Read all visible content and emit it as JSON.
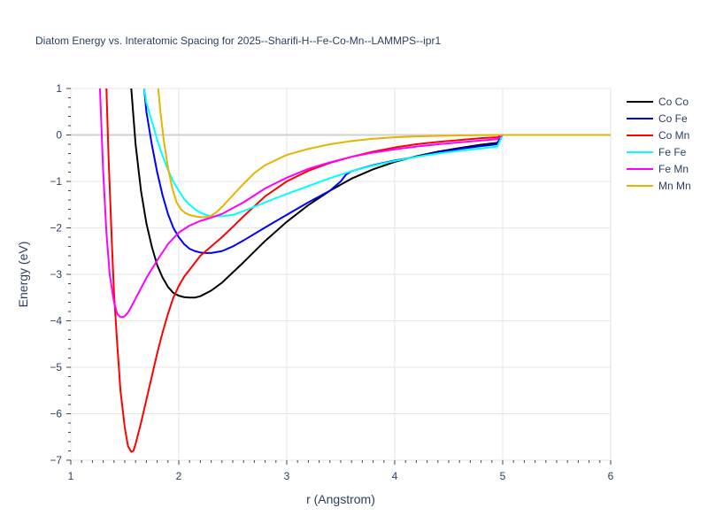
{
  "chart_data": {
    "type": "line",
    "title": "Diatom Energy vs. Interatomic Spacing for 2025--Sharifi-H--Fe-Co-Mn--LAMMPS--ipr1",
    "xlabel": "r (Angstrom)",
    "ylabel": "Energy (eV)",
    "xlim": [
      1,
      6
    ],
    "ylim": [
      -7,
      1
    ],
    "xticks": [
      1,
      2,
      3,
      4,
      5,
      6
    ],
    "yticks": [
      1,
      0,
      -1,
      -2,
      -3,
      -4,
      -5,
      -6,
      -7
    ],
    "xtick_labels": [
      "1",
      "2",
      "3",
      "4",
      "5",
      "6"
    ],
    "ytick_labels": [
      "1",
      "0",
      "−1",
      "−2",
      "−3",
      "−4",
      "−5",
      "−6",
      "−7"
    ],
    "grid": true,
    "legend_position": "top-right",
    "series": [
      {
        "name": "Co Co",
        "color": "#000000",
        "x": [
          1.56,
          1.58,
          1.6,
          1.65,
          1.7,
          1.75,
          1.8,
          1.85,
          1.9,
          1.95,
          2.0,
          2.05,
          2.1,
          2.15,
          2.2,
          2.3,
          2.4,
          2.5,
          2.6,
          2.8,
          3.0,
          3.2,
          3.4,
          3.6,
          3.8,
          4.0,
          4.2,
          4.4,
          4.6,
          4.8,
          4.95,
          5.0,
          5.5,
          6.0
        ],
        "y": [
          1.0,
          0.4,
          -0.2,
          -1.2,
          -1.9,
          -2.4,
          -2.8,
          -3.07,
          -3.27,
          -3.4,
          -3.46,
          -3.49,
          -3.5,
          -3.5,
          -3.47,
          -3.35,
          -3.18,
          -2.96,
          -2.74,
          -2.28,
          -1.87,
          -1.51,
          -1.2,
          -0.94,
          -0.74,
          -0.58,
          -0.46,
          -0.36,
          -0.28,
          -0.21,
          -0.17,
          0.0,
          0.0,
          0.0
        ]
      },
      {
        "name": "Co Fe",
        "color": "#0000ff",
        "x": [
          1.68,
          1.7,
          1.75,
          1.8,
          1.85,
          1.9,
          1.95,
          2.0,
          2.05,
          2.1,
          2.15,
          2.2,
          2.25,
          2.3,
          2.4,
          2.5,
          2.6,
          2.8,
          3.0,
          3.2,
          3.4,
          3.5,
          3.55,
          3.6,
          3.8,
          4.0,
          4.2,
          4.4,
          4.6,
          4.8,
          4.95,
          5.0,
          5.5,
          6.0
        ],
        "y": [
          1.0,
          0.5,
          -0.2,
          -0.8,
          -1.3,
          -1.7,
          -2.0,
          -2.2,
          -2.35,
          -2.45,
          -2.5,
          -2.53,
          -2.54,
          -2.54,
          -2.5,
          -2.4,
          -2.27,
          -1.99,
          -1.72,
          -1.45,
          -1.2,
          -1.0,
          -0.85,
          -0.78,
          -0.65,
          -0.55,
          -0.47,
          -0.38,
          -0.3,
          -0.24,
          -0.2,
          0.0,
          0.0,
          0.0
        ]
      },
      {
        "name": "Co Mn",
        "color": "#ff0000",
        "x": [
          1.33,
          1.35,
          1.38,
          1.4,
          1.43,
          1.46,
          1.5,
          1.53,
          1.56,
          1.58,
          1.6,
          1.65,
          1.7,
          1.75,
          1.8,
          1.85,
          1.9,
          1.95,
          2.0,
          2.05,
          2.1,
          2.2,
          2.3,
          2.4,
          2.5,
          2.6,
          2.8,
          3.0,
          3.2,
          3.4,
          3.6,
          3.8,
          4.0,
          4.2,
          4.4,
          4.6,
          4.8,
          4.95,
          5.0,
          5.5,
          6.0
        ],
        "y": [
          1.0,
          -0.5,
          -2.3,
          -3.4,
          -4.5,
          -5.5,
          -6.3,
          -6.7,
          -6.82,
          -6.8,
          -6.65,
          -6.2,
          -5.7,
          -5.2,
          -4.7,
          -4.25,
          -3.85,
          -3.5,
          -3.25,
          -3.05,
          -2.9,
          -2.6,
          -2.4,
          -2.2,
          -1.98,
          -1.75,
          -1.32,
          -1.0,
          -0.77,
          -0.6,
          -0.47,
          -0.36,
          -0.27,
          -0.2,
          -0.15,
          -0.11,
          -0.07,
          -0.05,
          0.0,
          0.0,
          0.0
        ]
      },
      {
        "name": "Fe Fe",
        "color": "#00ffff",
        "x": [
          1.68,
          1.7,
          1.75,
          1.8,
          1.85,
          1.9,
          1.95,
          2.0,
          2.05,
          2.1,
          2.15,
          2.2,
          2.25,
          2.3,
          2.4,
          2.5,
          2.6,
          2.8,
          3.0,
          3.2,
          3.4,
          3.6,
          3.8,
          4.0,
          4.2,
          4.4,
          4.6,
          4.8,
          4.95,
          5.0,
          5.5,
          6.0
        ],
        "y": [
          1.0,
          0.7,
          0.3,
          -0.1,
          -0.45,
          -0.75,
          -1.0,
          -1.2,
          -1.38,
          -1.5,
          -1.6,
          -1.67,
          -1.72,
          -1.75,
          -1.75,
          -1.72,
          -1.64,
          -1.45,
          -1.27,
          -1.1,
          -0.93,
          -0.78,
          -0.66,
          -0.56,
          -0.47,
          -0.4,
          -0.34,
          -0.29,
          -0.25,
          0.0,
          0.0,
          0.0
        ]
      },
      {
        "name": "Fe Mn",
        "color": "#ff00ff",
        "x": [
          1.27,
          1.3,
          1.33,
          1.36,
          1.4,
          1.43,
          1.46,
          1.48,
          1.5,
          1.53,
          1.56,
          1.6,
          1.65,
          1.7,
          1.8,
          1.9,
          2.0,
          2.1,
          2.2,
          2.3,
          2.4,
          2.6,
          2.8,
          3.0,
          3.2,
          3.4,
          3.6,
          3.8,
          4.0,
          4.2,
          4.4,
          4.6,
          4.8,
          4.95,
          5.0,
          5.5,
          6.0
        ],
        "y": [
          1.0,
          -0.8,
          -2.1,
          -3.0,
          -3.6,
          -3.85,
          -3.92,
          -3.92,
          -3.9,
          -3.82,
          -3.7,
          -3.52,
          -3.3,
          -3.08,
          -2.7,
          -2.35,
          -2.1,
          -1.95,
          -1.85,
          -1.78,
          -1.7,
          -1.45,
          -1.15,
          -0.92,
          -0.73,
          -0.59,
          -0.47,
          -0.38,
          -0.31,
          -0.25,
          -0.2,
          -0.16,
          -0.12,
          -0.09,
          0.0,
          0.0,
          0.0
        ]
      },
      {
        "name": "Mn Mn",
        "color": "#e6b400",
        "x": [
          1.81,
          1.83,
          1.86,
          1.9,
          1.94,
          1.98,
          2.02,
          2.06,
          2.1,
          2.15,
          2.2,
          2.25,
          2.3,
          2.35,
          2.4,
          2.5,
          2.6,
          2.7,
          2.8,
          3.0,
          3.2,
          3.4,
          3.6,
          3.8,
          4.0,
          4.2,
          4.4,
          4.6,
          4.8,
          4.95,
          5.0,
          5.5,
          6.0
        ],
        "y": [
          1.0,
          0.5,
          -0.1,
          -0.7,
          -1.15,
          -1.45,
          -1.6,
          -1.68,
          -1.72,
          -1.75,
          -1.77,
          -1.77,
          -1.74,
          -1.66,
          -1.55,
          -1.3,
          -1.05,
          -0.82,
          -0.65,
          -0.43,
          -0.3,
          -0.2,
          -0.13,
          -0.08,
          -0.05,
          -0.03,
          -0.02,
          -0.01,
          -0.005,
          0.0,
          0.0,
          0.0,
          0.0
        ]
      }
    ]
  }
}
